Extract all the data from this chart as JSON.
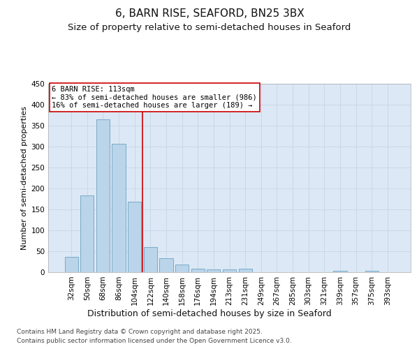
{
  "title": "6, BARN RISE, SEAFORD, BN25 3BX",
  "subtitle": "Size of property relative to semi-detached houses in Seaford",
  "xlabel": "Distribution of semi-detached houses by size in Seaford",
  "ylabel": "Number of semi-detached properties",
  "categories": [
    "32sqm",
    "50sqm",
    "68sqm",
    "86sqm",
    "104sqm",
    "122sqm",
    "140sqm",
    "158sqm",
    "176sqm",
    "194sqm",
    "213sqm",
    "231sqm",
    "249sqm",
    "267sqm",
    "285sqm",
    "303sqm",
    "321sqm",
    "339sqm",
    "357sqm",
    "375sqm",
    "393sqm"
  ],
  "values": [
    37,
    183,
    365,
    307,
    168,
    60,
    33,
    18,
    8,
    6,
    6,
    8,
    0,
    0,
    0,
    0,
    0,
    3,
    0,
    3,
    0
  ],
  "bar_color": "#bad4ea",
  "bar_edge_color": "#7aaac8",
  "vline_x_idx": 4,
  "vline_color": "#cc0000",
  "annotation_box_text": "6 BARN RISE: 113sqm\n← 83% of semi-detached houses are smaller (986)\n16% of semi-detached houses are larger (189) →",
  "annotation_box_color": "#cc0000",
  "annotation_bg": "#ffffff",
  "ylim": [
    0,
    450
  ],
  "yticks": [
    0,
    50,
    100,
    150,
    200,
    250,
    300,
    350,
    400,
    450
  ],
  "grid_color": "#c8d8e8",
  "background_color": "#dce8f5",
  "footer_line1": "Contains HM Land Registry data © Crown copyright and database right 2025.",
  "footer_line2": "Contains public sector information licensed under the Open Government Licence v3.0.",
  "title_fontsize": 11,
  "subtitle_fontsize": 9.5,
  "xlabel_fontsize": 9,
  "ylabel_fontsize": 8,
  "tick_fontsize": 7.5,
  "footer_fontsize": 6.5,
  "annot_fontsize": 7.5
}
